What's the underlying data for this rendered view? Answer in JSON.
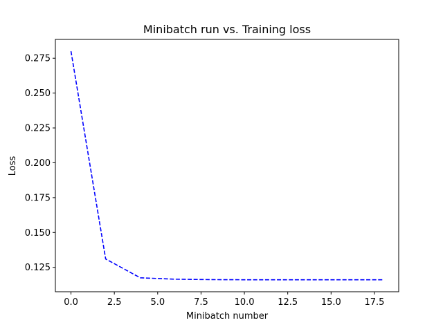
{
  "chart_data": {
    "type": "line",
    "title": "Minibatch run vs. Training loss",
    "xlabel": "Minibatch number",
    "ylabel": "Loss",
    "xlim": [
      -0.9,
      18.9
    ],
    "ylim": [
      0.1075,
      0.2885
    ],
    "xticks": [
      0.0,
      2.5,
      5.0,
      7.5,
      10.0,
      12.5,
      15.0,
      17.5
    ],
    "xtick_labels": [
      "0.0",
      "2.5",
      "5.0",
      "7.5",
      "10.0",
      "12.5",
      "15.0",
      "17.5"
    ],
    "yticks": [
      0.125,
      0.15,
      0.175,
      0.2,
      0.225,
      0.25,
      0.275
    ],
    "ytick_labels": [
      "0.125",
      "0.150",
      "0.175",
      "0.200",
      "0.225",
      "0.250",
      "0.275"
    ],
    "grid": false,
    "series": [
      {
        "style": "dashed",
        "color": "#0000ff",
        "x": [
          0,
          2,
          4,
          6,
          8,
          10,
          12,
          14,
          16,
          18
        ],
        "y": [
          0.28,
          0.131,
          0.1175,
          0.1165,
          0.1162,
          0.1161,
          0.1161,
          0.1161,
          0.1161,
          0.1161
        ]
      }
    ]
  }
}
